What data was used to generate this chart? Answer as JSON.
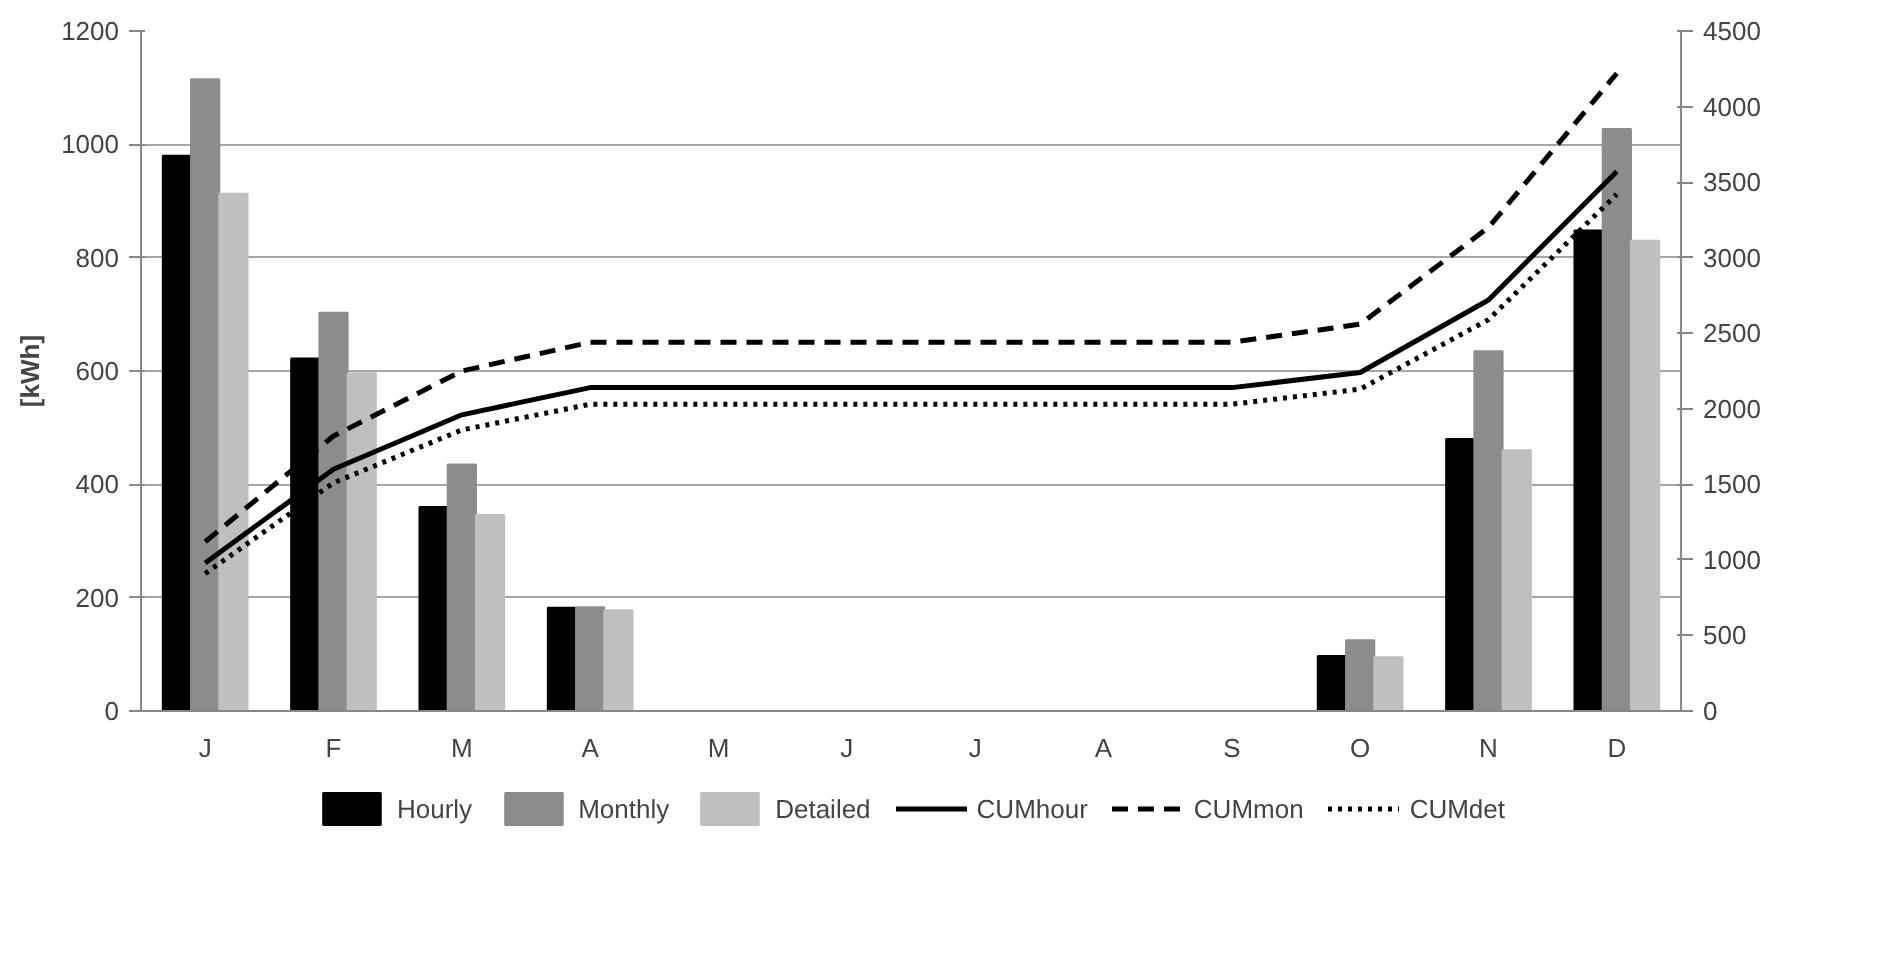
{
  "chart_data": {
    "type": "bar",
    "ylabel": "[kWh]",
    "categories": [
      "J",
      "F",
      "M",
      "A",
      "M",
      "J",
      "J",
      "A",
      "S",
      "O",
      "N",
      "D"
    ],
    "ylim": [
      0,
      1200
    ],
    "yticks": [
      0,
      200,
      400,
      600,
      800,
      1000,
      1200
    ],
    "y2lim": [
      0,
      4500
    ],
    "y2ticks": [
      0,
      500,
      1000,
      1500,
      2000,
      2500,
      3000,
      3500,
      4000,
      4500
    ],
    "grid": "y",
    "legend": "bottom",
    "series": [
      {
        "name": "Hourly",
        "color": "#000000",
        "values": [
          980,
          622,
          360,
          182,
          0,
          0,
          0,
          0,
          0,
          97,
          480,
          848
        ]
      },
      {
        "name": "Monthly",
        "color": "#8c8c8c",
        "values": [
          1115,
          703,
          435,
          183,
          0,
          0,
          0,
          0,
          0,
          125,
          635,
          1027
        ]
      },
      {
        "name": "Detailed",
        "color": "#bfbfbf",
        "values": [
          913,
          596,
          346,
          178,
          0,
          0,
          0,
          0,
          0,
          95,
          460,
          830
        ]
      },
      {
        "name": "CUMhour",
        "type": "line",
        "axis": "y2",
        "line_style": "solid",
        "color": "#000000",
        "values": [
          980,
          1600,
          1960,
          2140,
          2140,
          2140,
          2140,
          2140,
          2140,
          2240,
          2720,
          3570
        ]
      },
      {
        "name": "CUMmon",
        "type": "line",
        "axis": "y2",
        "line_style": "dashed",
        "color": "#000000",
        "values": [
          1120,
          1820,
          2250,
          2440,
          2440,
          2440,
          2440,
          2440,
          2440,
          2560,
          3200,
          4220
        ]
      },
      {
        "name": "CUMdet",
        "type": "line",
        "axis": "y2",
        "line_style": "dotted",
        "color": "#000000",
        "values": [
          910,
          1510,
          1860,
          2030,
          2030,
          2030,
          2030,
          2030,
          2030,
          2130,
          2590,
          3420
        ]
      }
    ]
  }
}
